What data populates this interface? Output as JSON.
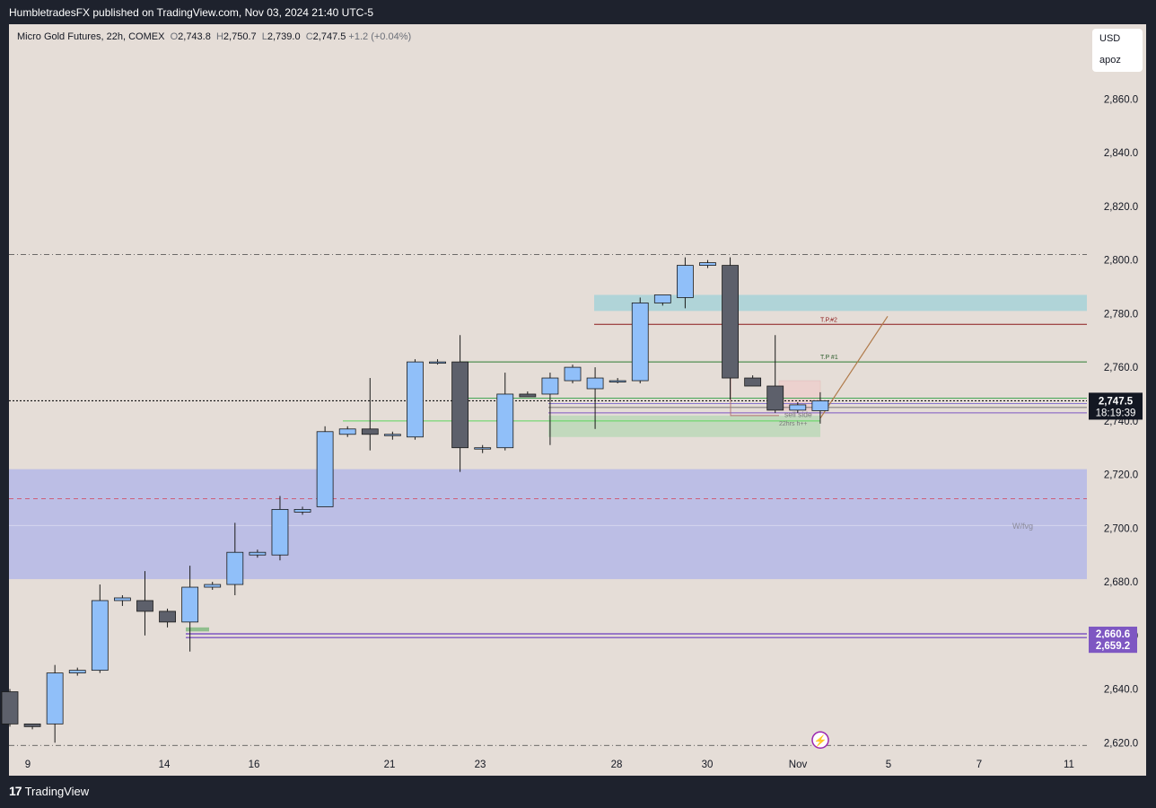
{
  "header": {
    "published": "HumbletradesFX published on TradingView.com, Nov 03, 2024 21:40 UTC-5"
  },
  "symbol": {
    "name": "Micro Gold Futures, 22h, COMEX",
    "open_label": "O",
    "open": "2,743.8",
    "high_label": "H",
    "high": "2,750.7",
    "low_label": "L",
    "low": "2,739.0",
    "close_label": "C",
    "close": "2,747.5",
    "change": "+1.2 (+0.04%)"
  },
  "currency": {
    "unit": "USD",
    "label": "apoz"
  },
  "footer": {
    "brand": "TradingView",
    "logo": "17"
  },
  "colors": {
    "background": "#e5ddd7",
    "bull_candle": "#90bff9",
    "bear_candle": "#5d606b",
    "fvg_zone": "#b5b9e8",
    "tp_zone": "#a3d2d8",
    "green_zone": "#a5d6a7",
    "purple_line": "#7e57c2",
    "tp2_line": "#8b1a1a",
    "tp1_line": "#2e7d32"
  },
  "chart_data": {
    "type": "candlestick",
    "title": "Micro Gold Futures, 22h, COMEX",
    "y_axis": {
      "ticks": [
        2620,
        2640,
        2660,
        2680,
        2700,
        2720,
        2740,
        2760,
        2780,
        2800,
        2820,
        2840,
        2860
      ],
      "tick_labels": [
        "2,620.0",
        "2,640.0",
        "2,660.0",
        "2,680.0",
        "2,700.0",
        "2,720.0",
        "2,740.0",
        "2,760.0",
        "2,780.0",
        "2,800.0",
        "2,820.0",
        "2,840.0",
        "2,860.0"
      ],
      "range": [
        2617,
        2885
      ]
    },
    "x_axis": {
      "tick_labels": [
        "9",
        "14",
        "16",
        "21",
        "23",
        "28",
        "30",
        "Nov",
        "5",
        "7",
        "11"
      ]
    },
    "candles": [
      {
        "o": 2639,
        "h": 2640,
        "l": 2626,
        "c": 2627
      },
      {
        "o": 2627,
        "h": 2627,
        "l": 2625,
        "c": 2626
      },
      {
        "o": 2627,
        "h": 2649,
        "l": 2620,
        "c": 2646
      },
      {
        "o": 2646,
        "h": 2648,
        "l": 2645,
        "c": 2647
      },
      {
        "o": 2647,
        "h": 2679,
        "l": 2646,
        "c": 2673
      },
      {
        "o": 2673,
        "h": 2675,
        "l": 2671,
        "c": 2674
      },
      {
        "o": 2673,
        "h": 2684,
        "l": 2660,
        "c": 2669
      },
      {
        "o": 2669,
        "h": 2670,
        "l": 2663,
        "c": 2665
      },
      {
        "o": 2665,
        "h": 2686,
        "l": 2654,
        "c": 2678
      },
      {
        "o": 2678,
        "h": 2680,
        "l": 2677,
        "c": 2679
      },
      {
        "o": 2679,
        "h": 2702,
        "l": 2675,
        "c": 2691
      },
      {
        "o": 2690,
        "h": 2692,
        "l": 2689,
        "c": 2691
      },
      {
        "o": 2690,
        "h": 2712,
        "l": 2688,
        "c": 2707
      },
      {
        "o": 2706,
        "h": 2708,
        "l": 2705,
        "c": 2707
      },
      {
        "o": 2708,
        "h": 2738,
        "l": 2708,
        "c": 2736
      },
      {
        "o": 2735,
        "h": 2738,
        "l": 2734,
        "c": 2737
      },
      {
        "o": 2737,
        "h": 2756,
        "l": 2729,
        "c": 2735
      },
      {
        "o": 2735,
        "h": 2736,
        "l": 2733,
        "c": 2735
      },
      {
        "o": 2734,
        "h": 2763,
        "l": 2733,
        "c": 2762
      },
      {
        "o": 2762,
        "h": 2763,
        "l": 2761,
        "c": 2762
      },
      {
        "o": 2762,
        "h": 2772,
        "l": 2721,
        "c": 2730
      },
      {
        "o": 2730,
        "h": 2731,
        "l": 2728,
        "c": 2730
      },
      {
        "o": 2730,
        "h": 2758,
        "l": 2729,
        "c": 2750
      },
      {
        "o": 2750,
        "h": 2751,
        "l": 2749,
        "c": 2749
      },
      {
        "o": 2750,
        "h": 2758,
        "l": 2731,
        "c": 2756
      },
      {
        "o": 2755,
        "h": 2761,
        "l": 2754,
        "c": 2760
      },
      {
        "o": 2752,
        "h": 2760,
        "l": 2737,
        "c": 2756
      },
      {
        "o": 2755,
        "h": 2756,
        "l": 2754,
        "c": 2755
      },
      {
        "o": 2755,
        "h": 2786,
        "l": 2754,
        "c": 2784
      },
      {
        "o": 2784,
        "h": 2787,
        "l": 2783,
        "c": 2787
      },
      {
        "o": 2786,
        "h": 2801,
        "l": 2782,
        "c": 2798
      },
      {
        "o": 2798,
        "h": 2800,
        "l": 2797,
        "c": 2799
      },
      {
        "o": 2798,
        "h": 2801,
        "l": 2748,
        "c": 2756
      },
      {
        "o": 2756,
        "h": 2757,
        "l": 2753,
        "c": 2753
      },
      {
        "o": 2753,
        "h": 2772,
        "l": 2743,
        "c": 2744
      },
      {
        "o": 2744,
        "h": 2747,
        "l": 2743,
        "c": 2746
      },
      {
        "o": 2743.8,
        "h": 2750.7,
        "l": 2739.0,
        "c": 2747.5
      }
    ],
    "annotations": [
      {
        "label": "T.P.#2",
        "price": 2776
      },
      {
        "label": "T.P #1",
        "price": 2762
      },
      {
        "label": "sell side",
        "price": 2744
      },
      {
        "label": "22hrs h++",
        "price": 2740
      },
      {
        "label": "W/fvg",
        "price": 2701
      }
    ],
    "zones": [
      {
        "name": "W/fvg",
        "low": 2681,
        "high": 2722
      },
      {
        "name": "T.P.#2 zone",
        "low": 2781,
        "high": 2787
      },
      {
        "name": "22hrs h++",
        "low": 2734,
        "high": 2742
      }
    ],
    "price_labels": [
      {
        "price": "2,747.5",
        "timer": "18:19:39"
      },
      {
        "price": "2,660.6"
      },
      {
        "price": "2,659.2"
      }
    ],
    "levels": [
      {
        "name": "upper-range",
        "price": 2802
      },
      {
        "name": "lower-range",
        "price": 2619
      },
      {
        "name": "fvg-mid",
        "price": 2711
      },
      {
        "name": "current",
        "price": 2747.5
      },
      {
        "name": "purple-1",
        "price": 2660.6
      },
      {
        "name": "purple-2",
        "price": 2659.2
      }
    ],
    "legend": "none",
    "grid": false
  }
}
